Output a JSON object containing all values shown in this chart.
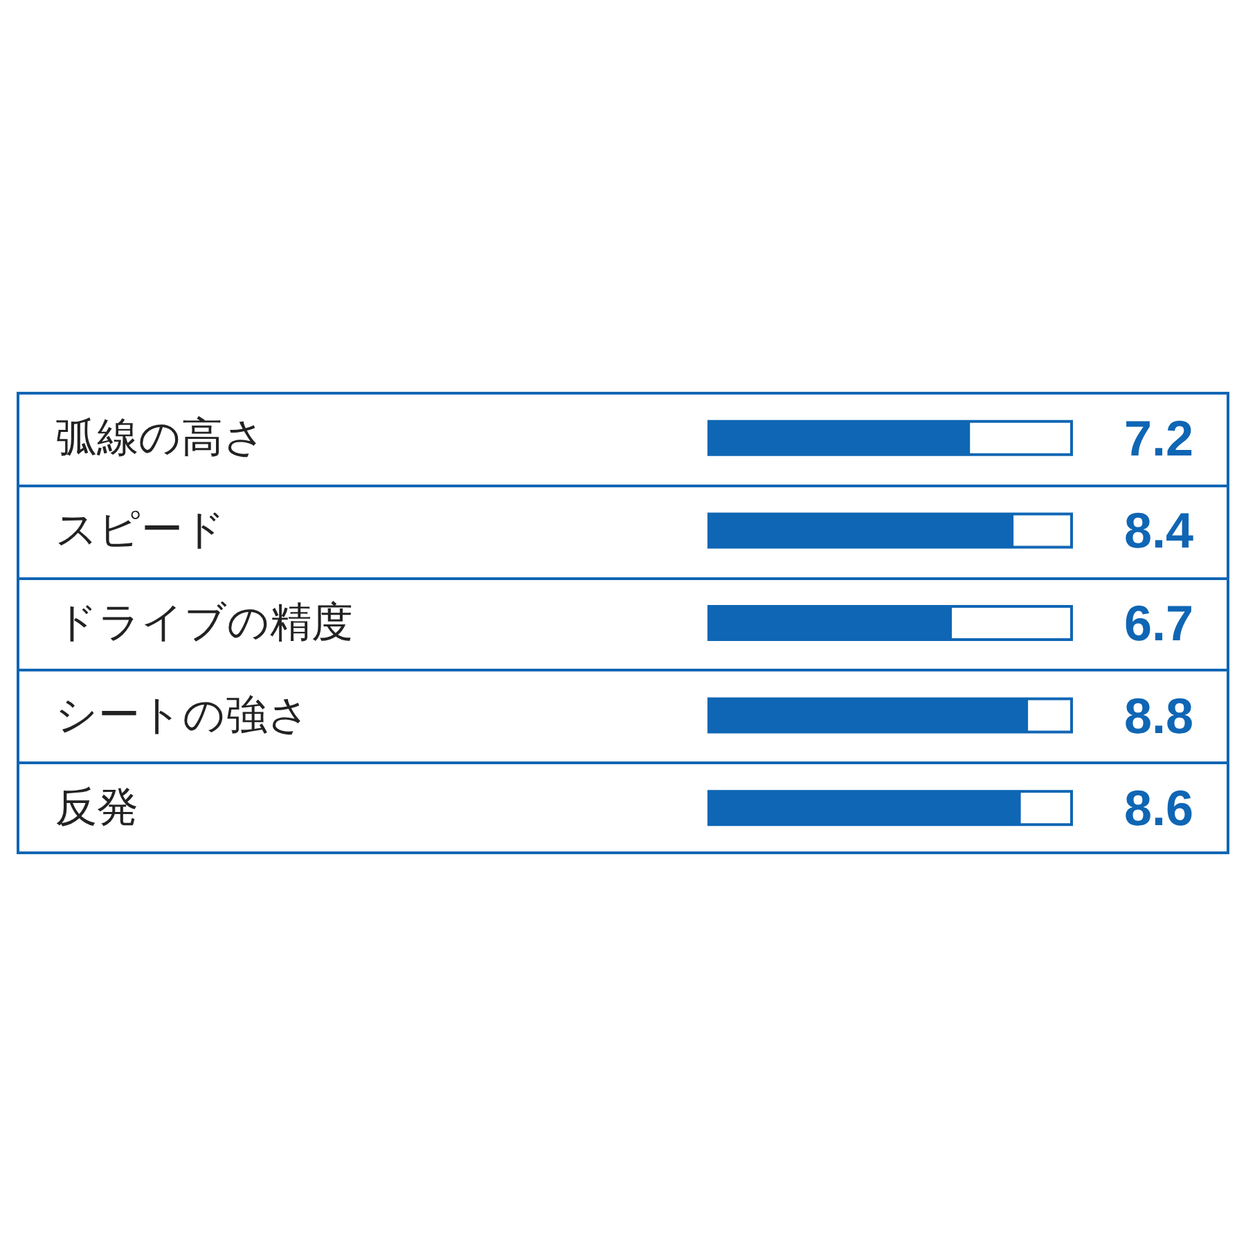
{
  "chart_data": {
    "type": "bar",
    "orientation": "horizontal",
    "categories": [
      "弧線の高さ",
      "スピード",
      "ドライブの精度",
      "シートの強さ",
      "反発"
    ],
    "values": [
      7.2,
      8.4,
      6.7,
      8.8,
      8.6
    ],
    "color": "#0f66b4",
    "xlim": [
      0,
      10
    ],
    "data_labels": true,
    "tick_labels": "y"
  }
}
